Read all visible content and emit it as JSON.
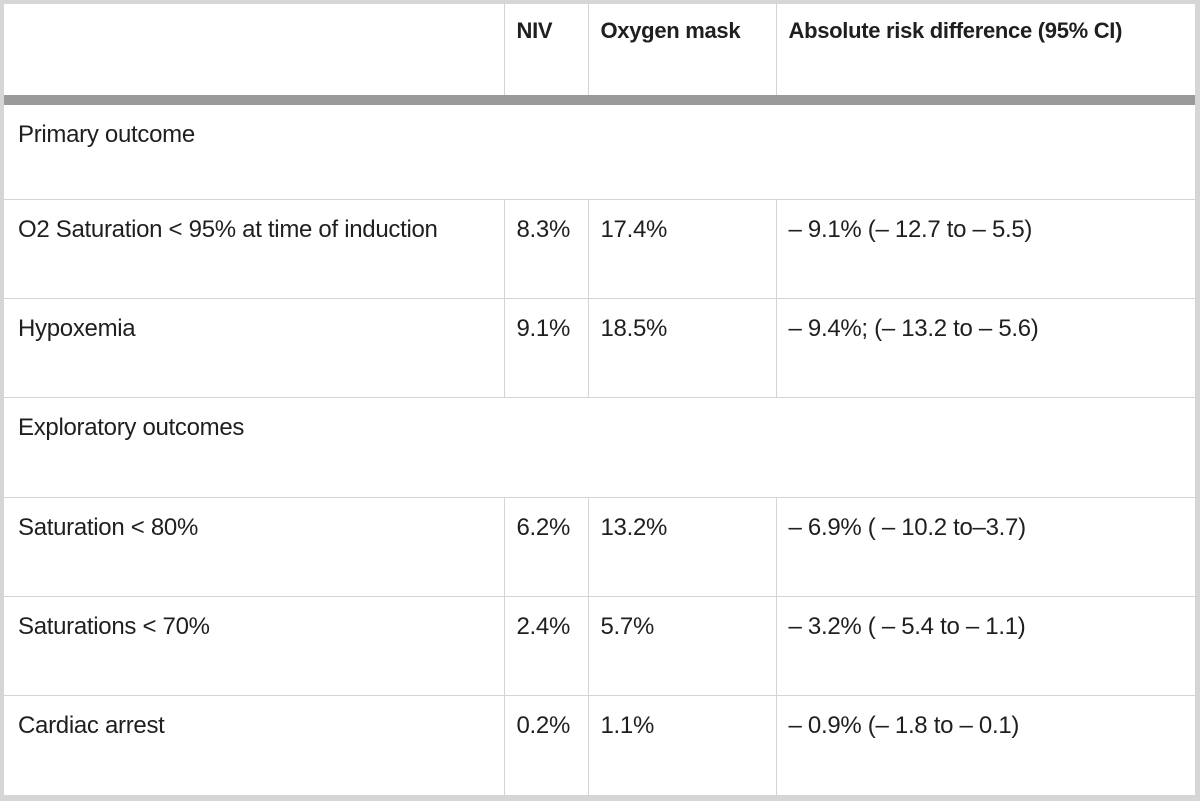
{
  "colors": {
    "text": "#1f1f1f",
    "frame_border": "#d6d6d6",
    "cell_border": "#d4d4d4",
    "header_bar": "#9a9a9a"
  },
  "table": {
    "columns": [
      "",
      "NIV",
      "Oxygen mask",
      "Absolute risk difference (95% CI)"
    ],
    "rows": [
      {
        "type": "section",
        "label": "Primary outcome"
      },
      {
        "type": "data",
        "cells": [
          "O2 Saturation < 95% at time of induction",
          "8.3%",
          "17.4%",
          "– 9.1% (– 12.7 to – 5.5)"
        ]
      },
      {
        "type": "data",
        "cells": [
          "Hypoxemia",
          "9.1%",
          "18.5%",
          "– 9.4%; (– 13.2 to – 5.6)"
        ]
      },
      {
        "type": "section",
        "label": "Exploratory outcomes"
      },
      {
        "type": "data",
        "cells": [
          "Saturation < 80%",
          "6.2%",
          "13.2%",
          "– 6.9% ( – 10.2 to–3.7)"
        ]
      },
      {
        "type": "data",
        "cells": [
          "Saturations < 70%",
          "2.4%",
          "5.7%",
          "– 3.2% ( – 5.4 to – 1.1)"
        ]
      },
      {
        "type": "data",
        "cells": [
          "Cardiac arrest",
          "0.2%",
          "1.1%",
          "– 0.9% (– 1.8 to – 0.1)"
        ]
      }
    ]
  }
}
